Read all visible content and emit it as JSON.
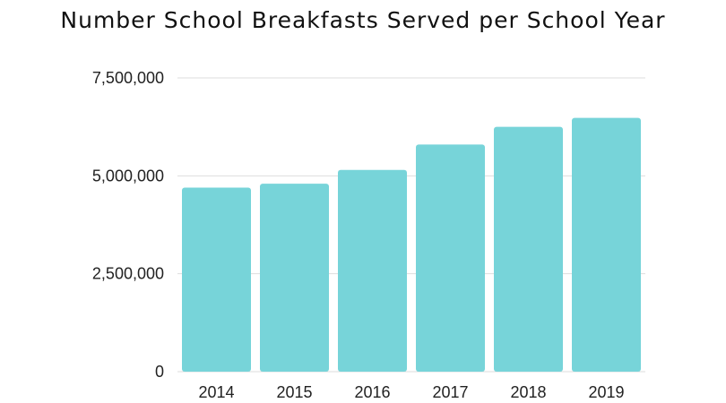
{
  "chart_data": {
    "type": "bar",
    "title": "Number School Breakfasts Served per School Year",
    "categories": [
      "2014",
      "2015",
      "2016",
      "2017",
      "2018",
      "2019"
    ],
    "values": [
      4700000,
      4800000,
      5150000,
      5800000,
      6250000,
      6480000
    ],
    "ylim": [
      0,
      7500000
    ],
    "y_ticks": [
      0,
      2500000,
      5000000,
      7500000
    ],
    "y_tick_labels": [
      "0",
      "2,500,000",
      "5,000,000",
      "7,500,000"
    ],
    "xlabel": "",
    "ylabel": "",
    "grid": true,
    "bar_color": "#77d4d9",
    "grid_color": "#dddddd"
  }
}
